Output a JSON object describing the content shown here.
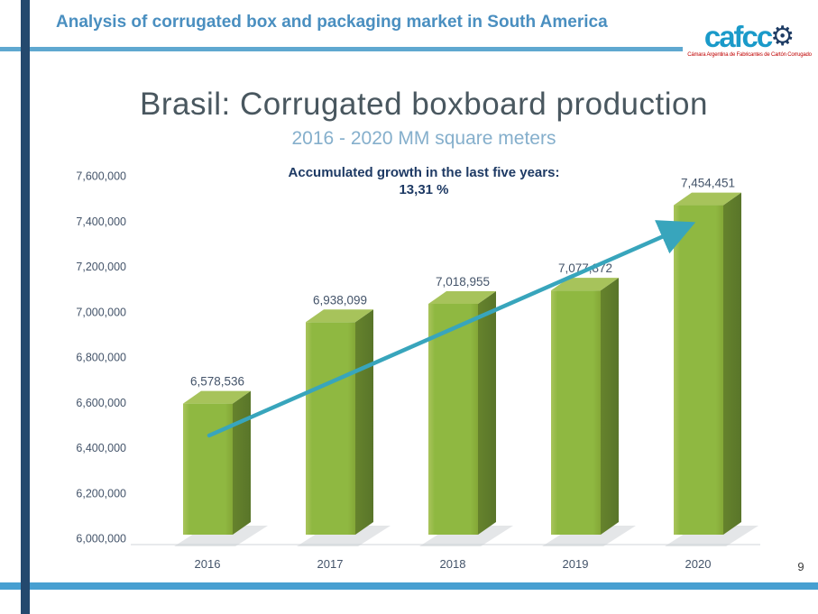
{
  "slide": {
    "header": {
      "title": "Analysis of corrugated box and packaging market in South America"
    },
    "logo": {
      "text": "cafcc",
      "gear_glyph": "⚙",
      "tagline": "Cámara Argentina de Fabricantes de Cartón Corrugado"
    },
    "title": "Brasil: Corrugated boxboard production",
    "subtitle": "2016 - 2020 MM square meters",
    "annotation": {
      "line1": "Accumulated growth in the last five years:",
      "line2": "13,31 %"
    },
    "page_number": "9"
  },
  "chart_data": {
    "type": "bar",
    "title": "Brasil: Corrugated boxboard production",
    "subtitle": "2016 - 2020 MM square meters",
    "annotation": "Accumulated growth in the last five years: 13,31 %",
    "categories": [
      "2016",
      "2017",
      "2018",
      "2019",
      "2020"
    ],
    "values": [
      6578536,
      6938099,
      7018955,
      7077872,
      7454451
    ],
    "labels": [
      "6,578,536",
      "6,938,099",
      "7,018,955",
      "7,077,872",
      "7,454,451"
    ],
    "xlabel": "",
    "ylabel": "",
    "ylim": [
      6000000,
      7600000
    ],
    "ytick_step": 200000,
    "yticks": [
      "7,600,000",
      "7,400,000",
      "7,200,000",
      "7,000,000",
      "6,800,000",
      "6,600,000",
      "6,400,000",
      "6,200,000",
      "6,000,000"
    ],
    "grid": false,
    "legend": "none",
    "style_3d": true,
    "trend_arrow": true,
    "colors": {
      "bar_front_light": "#A9C45C",
      "bar_front": "#8FB841",
      "bar_front_dark": "#84A737",
      "bar_top": "#A7C35B",
      "bar_side": "#66832C",
      "bar_side_dark": "#59752A",
      "trend_line": "#38A5BC",
      "axis_text": "#44546A",
      "baseline": "#D9DDE1",
      "shadow": "#C9CED2"
    }
  }
}
